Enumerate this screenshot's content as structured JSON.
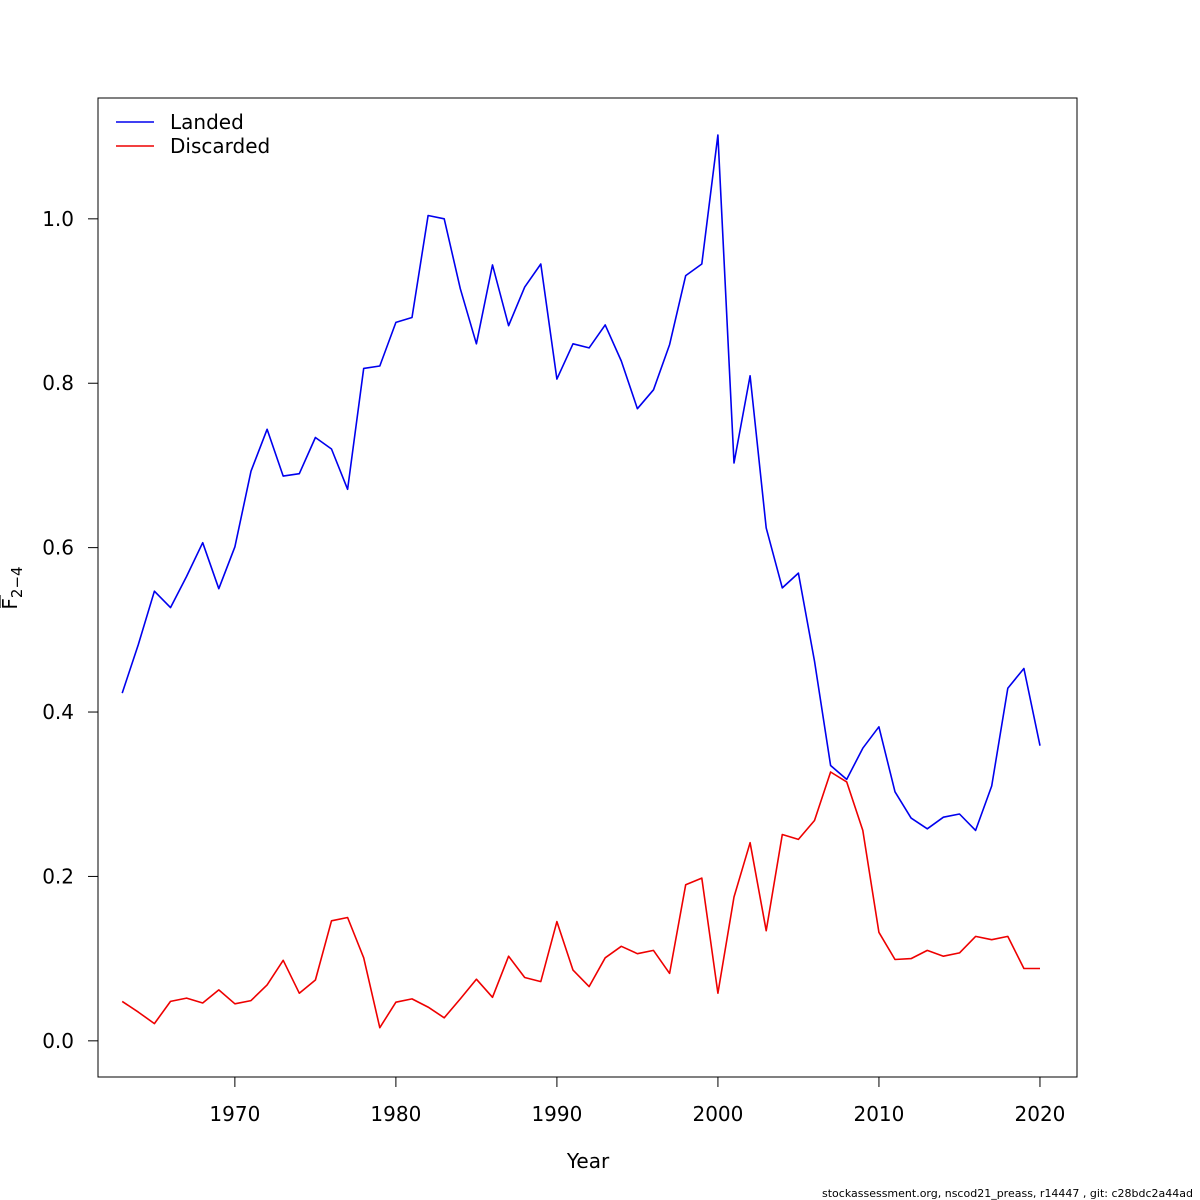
{
  "chart_data": {
    "type": "line",
    "xlabel": "Year",
    "ylabel_main": "F",
    "ylabel_sub": "2−4",
    "xlim": [
      1961.5,
      2022.3
    ],
    "ylim": [
      -0.044,
      1.147
    ],
    "xticks": [
      1970,
      1980,
      1990,
      2000,
      2010,
      2020
    ],
    "yticks": [
      0.0,
      0.2,
      0.4,
      0.6,
      0.8,
      1.0
    ],
    "ytick_labels": [
      "0.0",
      "0.2",
      "0.4",
      "0.6",
      "0.8",
      "1.0"
    ],
    "legend_position": "top-left",
    "x": [
      1963,
      1964,
      1965,
      1966,
      1967,
      1968,
      1969,
      1970,
      1971,
      1972,
      1973,
      1974,
      1975,
      1976,
      1977,
      1978,
      1979,
      1980,
      1981,
      1982,
      1983,
      1984,
      1985,
      1986,
      1987,
      1988,
      1989,
      1990,
      1991,
      1992,
      1993,
      1994,
      1995,
      1996,
      1997,
      1998,
      1999,
      2000,
      2001,
      2002,
      2003,
      2004,
      2005,
      2006,
      2007,
      2008,
      2009,
      2010,
      2011,
      2012,
      2013,
      2014,
      2015,
      2016,
      2017,
      2018,
      2019,
      2020
    ],
    "series": [
      {
        "name": "Landed",
        "color": "#0000ee",
        "values": [
          0.423,
          0.482,
          0.547,
          0.527,
          0.565,
          0.606,
          0.55,
          0.601,
          0.693,
          0.744,
          0.687,
          0.69,
          0.734,
          0.72,
          0.671,
          0.818,
          0.821,
          0.874,
          0.88,
          1.004,
          1.0,
          0.915,
          0.848,
          0.944,
          0.87,
          0.917,
          0.945,
          0.805,
          0.848,
          0.843,
          0.871,
          0.827,
          0.769,
          0.792,
          0.847,
          0.931,
          0.945,
          1.102,
          0.703,
          0.809,
          0.624,
          0.551,
          0.569,
          0.462,
          0.335,
          0.318,
          0.356,
          0.382,
          0.303,
          0.271,
          0.258,
          0.272,
          0.276,
          0.256,
          0.31,
          0.429,
          0.453,
          0.359
        ]
      },
      {
        "name": "Discarded",
        "color": "#ee0000",
        "values": [
          0.048,
          0.035,
          0.021,
          0.048,
          0.052,
          0.046,
          0.062,
          0.045,
          0.049,
          0.068,
          0.098,
          0.058,
          0.074,
          0.146,
          0.15,
          0.101,
          0.016,
          0.047,
          0.051,
          0.041,
          0.028,
          0.051,
          0.075,
          0.053,
          0.103,
          0.077,
          0.072,
          0.145,
          0.086,
          0.066,
          0.101,
          0.115,
          0.106,
          0.11,
          0.082,
          0.19,
          0.198,
          0.058,
          0.175,
          0.241,
          0.134,
          0.251,
          0.245,
          0.268,
          0.327,
          0.315,
          0.256,
          0.132,
          0.099,
          0.1,
          0.11,
          0.103,
          0.107,
          0.127,
          0.123,
          0.127,
          0.088,
          0.088
        ]
      }
    ]
  },
  "footer_text": "stockassessment.org, nscod21_preass, r14447 , git: c28bdc2a44ad"
}
